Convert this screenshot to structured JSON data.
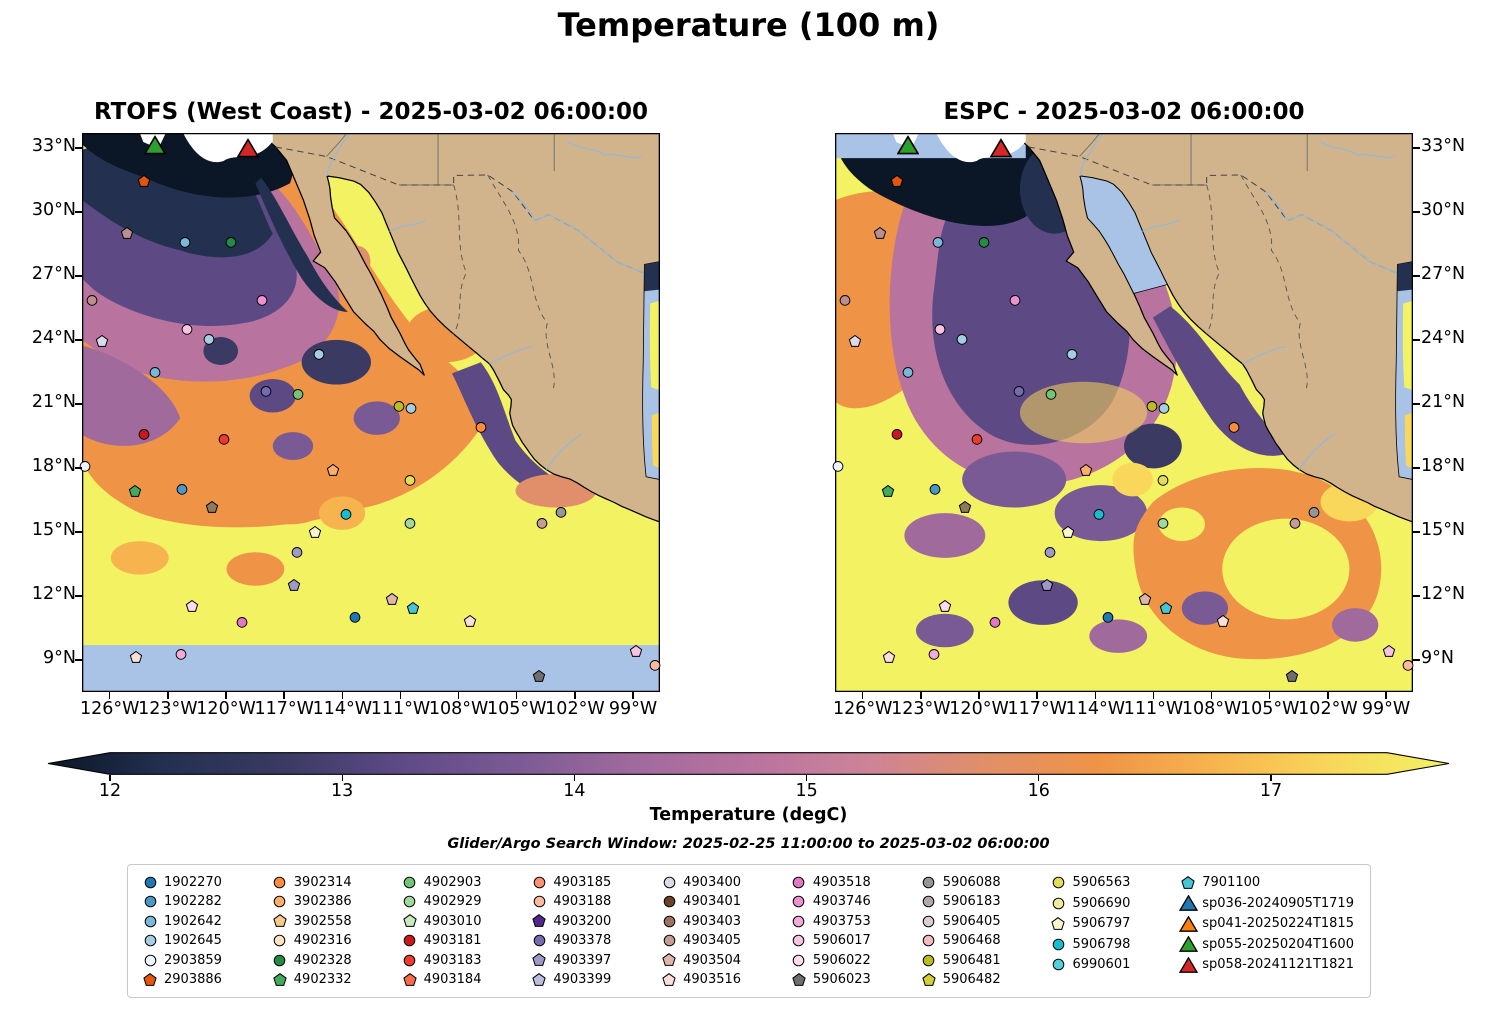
{
  "chart_data": {
    "type": "heatmap",
    "title": "Temperature (100 m)",
    "subtitle": "Glider/Argo Search Window: 2025-02-25 11:00:00 to 2025-03-02 06:00:00",
    "subplots": [
      {
        "title": "RTOFS (West Coast) - 2025-03-02 06:00:00"
      },
      {
        "title": "ESPC - 2025-03-02 06:00:00"
      }
    ],
    "x_ticks": [
      "126°W",
      "123°W",
      "120°W",
      "117°W",
      "114°W",
      "111°W",
      "108°W",
      "105°W",
      "102°W",
      "99°W"
    ],
    "y_ticks": [
      "33°N",
      "30°N",
      "27°N",
      "24°N",
      "21°N",
      "18°N",
      "15°N",
      "12°N",
      "9°N"
    ],
    "xlim": [
      "127.5°W",
      "97.5°W"
    ],
    "ylim": [
      "8°N",
      "33.7°N"
    ],
    "grid": false,
    "legend_position": "bottom",
    "colorbar": {
      "label": "Temperature (degC)",
      "ticks": [
        12,
        13,
        14,
        15,
        16,
        17
      ],
      "range_degC": [
        11.75,
        17.75
      ],
      "gradient": [
        "#0b1626",
        "#233050",
        "#3a3a63",
        "#5d4a85",
        "#7a5a94",
        "#a06a9d",
        "#b8739f",
        "#cc8398",
        "#e08f6a",
        "#ef9446",
        "#f7b44e",
        "#f8d75a",
        "#f3f262"
      ]
    },
    "map_colors": {
      "land": "#d2b48c",
      "water_mask": "#a9c3e6",
      "river": "#8fb8dc",
      "border": "#6e6e6e",
      "coastline": "#000000",
      "deep_navy": "#0b1626",
      "dark_slate": "#233050",
      "indigo": "#3a3a63",
      "purple": "#5d4a85",
      "violet": "#7a5a94",
      "mauve": "#a06a9d",
      "rose": "#b8739f",
      "pink_rose": "#cc8398",
      "salmon": "#e08f6a",
      "orange": "#ef9446",
      "light_orange": "#f7b44e",
      "gold": "#f8d75a",
      "yellow": "#f3f262"
    },
    "legend_columns": [
      [
        {
          "id": "1902270",
          "shape": "circle",
          "color": "#1f77b4"
        },
        {
          "id": "1902282",
          "shape": "circle",
          "color": "#4a98c9"
        },
        {
          "id": "1902642",
          "shape": "circle",
          "color": "#7ab8d9"
        },
        {
          "id": "1902645",
          "shape": "circle",
          "color": "#a6cee3"
        },
        {
          "id": "2903859",
          "shape": "circle",
          "color": "#edf4fb"
        },
        {
          "id": "2903886",
          "shape": "pentagon",
          "color": "#e6550d"
        }
      ],
      [
        {
          "id": "3902314",
          "shape": "circle",
          "color": "#fd8d3c"
        },
        {
          "id": "3902386",
          "shape": "circle",
          "color": "#fdae6b"
        },
        {
          "id": "3902558",
          "shape": "pentagon",
          "color": "#fdc98c"
        },
        {
          "id": "4902316",
          "shape": "circle",
          "color": "#fde3c3"
        },
        {
          "id": "4902328",
          "shape": "circle",
          "color": "#238b45"
        },
        {
          "id": "4902332",
          "shape": "pentagon",
          "color": "#41ab5d"
        }
      ],
      [
        {
          "id": "4902903",
          "shape": "circle",
          "color": "#74c476"
        },
        {
          "id": "4902929",
          "shape": "circle",
          "color": "#a1d99b"
        },
        {
          "id": "4903010",
          "shape": "pentagon",
          "color": "#c7e9c0"
        },
        {
          "id": "4903181",
          "shape": "circle",
          "color": "#cb181d"
        },
        {
          "id": "4903183",
          "shape": "circle",
          "color": "#ef3b2c"
        },
        {
          "id": "4903184",
          "shape": "pentagon",
          "color": "#fb6a4a"
        }
      ],
      [
        {
          "id": "4903185",
          "shape": "circle",
          "color": "#fc9272"
        },
        {
          "id": "4903188",
          "shape": "circle",
          "color": "#fcbba1"
        },
        {
          "id": "4903200",
          "shape": "pentagon",
          "color": "#54278f"
        },
        {
          "id": "4903378",
          "shape": "circle",
          "color": "#756bb1"
        },
        {
          "id": "4903397",
          "shape": "pentagon",
          "color": "#9e9ac8"
        },
        {
          "id": "4903399",
          "shape": "pentagon",
          "color": "#bcbddc"
        }
      ],
      [
        {
          "id": "4903400",
          "shape": "circle",
          "color": "#dadaeb"
        },
        {
          "id": "4903401",
          "shape": "circle",
          "color": "#6b4226"
        },
        {
          "id": "4903403",
          "shape": "circle",
          "color": "#9c7362"
        },
        {
          "id": "4903405",
          "shape": "circle",
          "color": "#c49c94"
        },
        {
          "id": "4903504",
          "shape": "pentagon",
          "color": "#ddb7ab"
        },
        {
          "id": "4903516",
          "shape": "pentagon",
          "color": "#fadfd8"
        }
      ],
      [
        {
          "id": "4903518",
          "shape": "circle",
          "color": "#e377c2"
        },
        {
          "id": "4903746",
          "shape": "circle",
          "color": "#ec93cf"
        },
        {
          "id": "4903753",
          "shape": "circle",
          "color": "#f3abda"
        },
        {
          "id": "5906017",
          "shape": "circle",
          "color": "#f7c3e3"
        },
        {
          "id": "5906022",
          "shape": "circle",
          "color": "#fbdcef"
        },
        {
          "id": "5906023",
          "shape": "pentagon",
          "color": "#6e6e6e"
        }
      ],
      [
        {
          "id": "5906088",
          "shape": "circle",
          "color": "#969696"
        },
        {
          "id": "5906183",
          "shape": "circle",
          "color": "#b3a8a8"
        },
        {
          "id": "5906405",
          "shape": "circle",
          "color": "#d9cfcf"
        },
        {
          "id": "5906468",
          "shape": "circle",
          "color": "#f3bbc0"
        },
        {
          "id": "5906481",
          "shape": "circle",
          "color": "#bcbd22"
        },
        {
          "id": "5906482",
          "shape": "pentagon",
          "color": "#cfd03a"
        }
      ],
      [
        {
          "id": "5906563",
          "shape": "circle",
          "color": "#e3de58"
        },
        {
          "id": "5906690",
          "shape": "circle",
          "color": "#eeeaa0"
        },
        {
          "id": "5906797",
          "shape": "pentagon",
          "color": "#f9f6cf"
        },
        {
          "id": "5906798",
          "shape": "circle",
          "color": "#17becf"
        },
        {
          "id": "6990601",
          "shape": "circle",
          "color": "#52cfdc"
        }
      ],
      [
        {
          "id": "7901100",
          "shape": "pentagon",
          "color": "#45c5d6"
        },
        {
          "id": "sp036-20240905T1719",
          "shape": "triangle",
          "color": "#1f77b4"
        },
        {
          "id": "sp041-20250224T1815",
          "shape": "triangle",
          "color": "#ff7f0e"
        },
        {
          "id": "sp055-20250204T1600",
          "shape": "triangle",
          "color": "#2ca02c"
        },
        {
          "id": "sp058-20241121T1821",
          "shape": "triangle",
          "color": "#d62728"
        }
      ]
    ],
    "platforms_on_map": [
      {
        "x": 12.6,
        "y": 2.4,
        "shape": "triangle",
        "color": "#2ca02c"
      },
      {
        "x": 28.8,
        "y": 2.8,
        "shape": "triangle",
        "color": "#d62728"
      },
      {
        "x": 10.8,
        "y": 8.8,
        "shape": "pentagon",
        "color": "#e6550d"
      },
      {
        "x": 7.8,
        "y": 18.1,
        "shape": "pentagon",
        "color": "#bc8f8f"
      },
      {
        "x": 17.8,
        "y": 19.7,
        "shape": "circle",
        "color": "#7ab8d9"
      },
      {
        "x": 25.8,
        "y": 19.6,
        "shape": "circle",
        "color": "#238b45"
      },
      {
        "x": 1.8,
        "y": 30.0,
        "shape": "circle",
        "color": "#bc8f8f"
      },
      {
        "x": 31.2,
        "y": 30.0,
        "shape": "circle",
        "color": "#ec93cf"
      },
      {
        "x": 18.1,
        "y": 35.2,
        "shape": "circle",
        "color": "#f7c3e3"
      },
      {
        "x": 3.4,
        "y": 37.3,
        "shape": "pentagon",
        "color": "#dadaeb"
      },
      {
        "x": 22.0,
        "y": 37.1,
        "shape": "circle",
        "color": "#a6cee3"
      },
      {
        "x": 41.0,
        "y": 39.8,
        "shape": "circle",
        "color": "#a6cee3"
      },
      {
        "x": 12.7,
        "y": 42.9,
        "shape": "circle",
        "color": "#7ab8d9"
      },
      {
        "x": 31.9,
        "y": 46.4,
        "shape": "circle",
        "color": "#756bb1"
      },
      {
        "x": 37.3,
        "y": 46.8,
        "shape": "circle",
        "color": "#74c476"
      },
      {
        "x": 54.8,
        "y": 49.1,
        "shape": "circle",
        "color": "#bcbd22"
      },
      {
        "x": 57.0,
        "y": 49.3,
        "shape": "circle",
        "color": "#a6cee3"
      },
      {
        "x": 10.8,
        "y": 54.1,
        "shape": "circle",
        "color": "#cb181d"
      },
      {
        "x": 69.1,
        "y": 52.7,
        "shape": "circle",
        "color": "#fd8d3c"
      },
      {
        "x": 24.6,
        "y": 55.0,
        "shape": "circle",
        "color": "#ef3b2c"
      },
      {
        "x": 0.6,
        "y": 59.7,
        "shape": "circle",
        "color": "#edf4fb"
      },
      {
        "x": 43.5,
        "y": 60.4,
        "shape": "pentagon",
        "color": "#fdae6b"
      },
      {
        "x": 9.2,
        "y": 64.3,
        "shape": "pentagon",
        "color": "#41ab5d"
      },
      {
        "x": 17.3,
        "y": 63.8,
        "shape": "circle",
        "color": "#4a98c9"
      },
      {
        "x": 56.7,
        "y": 62.2,
        "shape": "circle",
        "color": "#e3de58"
      },
      {
        "x": 22.5,
        "y": 67.0,
        "shape": "pentagon",
        "color": "#8c7a5a"
      },
      {
        "x": 45.6,
        "y": 68.4,
        "shape": "circle",
        "color": "#17becf"
      },
      {
        "x": 56.7,
        "y": 69.9,
        "shape": "circle",
        "color": "#a1d99b"
      },
      {
        "x": 82.8,
        "y": 67.9,
        "shape": "circle",
        "color": "#969696"
      },
      {
        "x": 79.5,
        "y": 70.0,
        "shape": "circle",
        "color": "#c49c94"
      },
      {
        "x": 40.3,
        "y": 71.6,
        "shape": "pentagon",
        "color": "#f9f6cf"
      },
      {
        "x": 37.2,
        "y": 75.2,
        "shape": "circle",
        "color": "#9e9ac8"
      },
      {
        "x": 36.7,
        "y": 81.1,
        "shape": "pentagon",
        "color": "#9e9ac8"
      },
      {
        "x": 19.0,
        "y": 84.8,
        "shape": "pentagon",
        "color": "#fbdcef"
      },
      {
        "x": 53.6,
        "y": 83.6,
        "shape": "pentagon",
        "color": "#ddb7ab"
      },
      {
        "x": 57.3,
        "y": 85.2,
        "shape": "pentagon",
        "color": "#45c5d6"
      },
      {
        "x": 47.2,
        "y": 86.8,
        "shape": "circle",
        "color": "#1f77b4"
      },
      {
        "x": 27.7,
        "y": 87.6,
        "shape": "circle",
        "color": "#e377c2"
      },
      {
        "x": 67.2,
        "y": 87.4,
        "shape": "pentagon",
        "color": "#fadfd8"
      },
      {
        "x": 9.4,
        "y": 93.9,
        "shape": "pentagon",
        "color": "#fadfd8"
      },
      {
        "x": 17.2,
        "y": 93.4,
        "shape": "circle",
        "color": "#f3abda"
      },
      {
        "x": 95.8,
        "y": 92.8,
        "shape": "pentagon",
        "color": "#f7c3e3"
      },
      {
        "x": 99.2,
        "y": 95.3,
        "shape": "circle",
        "color": "#fcbba1"
      },
      {
        "x": 79.0,
        "y": 97.4,
        "shape": "pentagon",
        "color": "#6e6e6e"
      }
    ]
  }
}
